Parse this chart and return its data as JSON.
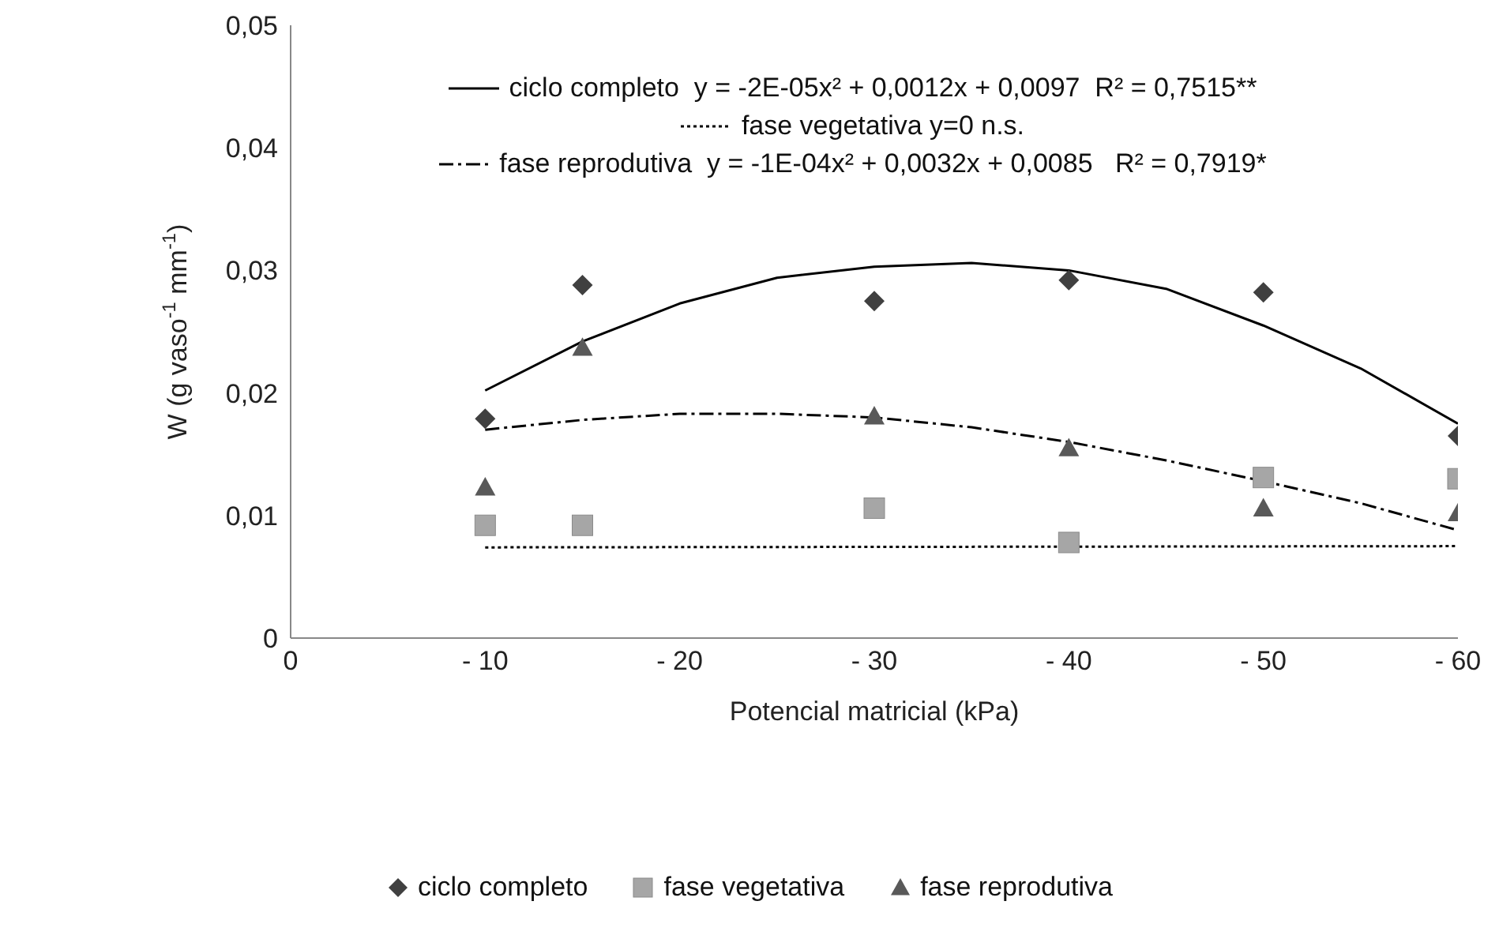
{
  "chart_data": {
    "type": "scatter",
    "xlabel": "Potencial matricial (kPa)",
    "ylabel": "W (g vaso$^{-1}$ mm$^{-1}$)",
    "xlim": [
      0,
      -60
    ],
    "xticks": [
      0,
      {
        "value": -10,
        "label": "- 10"
      },
      {
        "value": -20,
        "label": "- 20"
      },
      {
        "value": -30,
        "label": "- 30"
      },
      {
        "value": -40,
        "label": "- 40"
      },
      {
        "value": -50,
        "label": "- 50"
      },
      {
        "value": -60,
        "label": "- 60"
      }
    ],
    "ylim": [
      0,
      0.05
    ],
    "yticks": [
      0,
      {
        "value": 0.01,
        "label": "0,01"
      },
      {
        "value": 0.02,
        "label": "0,02"
      },
      {
        "value": 0.03,
        "label": "0,03"
      },
      {
        "value": 0.04,
        "label": "0,04"
      },
      {
        "value": 0.05,
        "label": "0,05"
      }
    ],
    "legend": "bottom",
    "series": [
      {
        "name": "ciclo completo",
        "marker": "diamond",
        "color": "#404040",
        "x": [
          -10,
          -15,
          -30,
          -40,
          -50,
          -60
        ],
        "values": [
          0.0179,
          0.0288,
          0.0275,
          0.0292,
          0.0282,
          0.0165
        ]
      },
      {
        "name": "fase vegetativa",
        "marker": "square",
        "color": "#a6a6a6",
        "x": [
          -10,
          -15,
          -30,
          -40,
          -50,
          -60
        ],
        "values": [
          0.0092,
          0.0092,
          0.0106,
          0.0078,
          0.0131,
          0.013
        ]
      },
      {
        "name": "fase reprodutiva",
        "marker": "triangle",
        "color": "#595959",
        "x": [
          -10,
          -15,
          -30,
          -40,
          -50,
          -60
        ],
        "values": [
          0.0123,
          0.0237,
          0.0181,
          0.0155,
          0.0106,
          0.0102
        ]
      },
      {
        "name": "ciclo completo  y = -2E-05x² + 0,0012x + 0,0097  R² = 0,7515**",
        "type": "line",
        "line_style": "solid",
        "color": "#000000",
        "x": [
          -10,
          -15,
          -20,
          -25,
          -30,
          -35,
          -40,
          -45,
          -50,
          -55,
          -60
        ],
        "values": [
          0.0202,
          0.0242,
          0.0273,
          0.0294,
          0.0303,
          0.0306,
          0.03,
          0.0285,
          0.0255,
          0.022,
          0.0175
        ]
      },
      {
        "name": "fase vegetativa y=0 n.s.",
        "type": "line",
        "line_style": "dotted",
        "color": "#000000",
        "x": [
          -10,
          -60
        ],
        "values": [
          0.0074,
          0.0075
        ]
      },
      {
        "name": "fase reprodutiva  y = -1E-04x² + 0,0032x + 0,0085   R² = 0,7919*",
        "type": "line",
        "line_style": "dashed",
        "color": "#000000",
        "x": [
          -10,
          -15,
          -20,
          -25,
          -30,
          -35,
          -40,
          -45,
          -50,
          -55,
          -60
        ],
        "values": [
          0.017,
          0.0178,
          0.0183,
          0.0183,
          0.018,
          0.0172,
          0.016,
          0.0145,
          0.0128,
          0.011,
          0.0088
        ]
      }
    ]
  }
}
